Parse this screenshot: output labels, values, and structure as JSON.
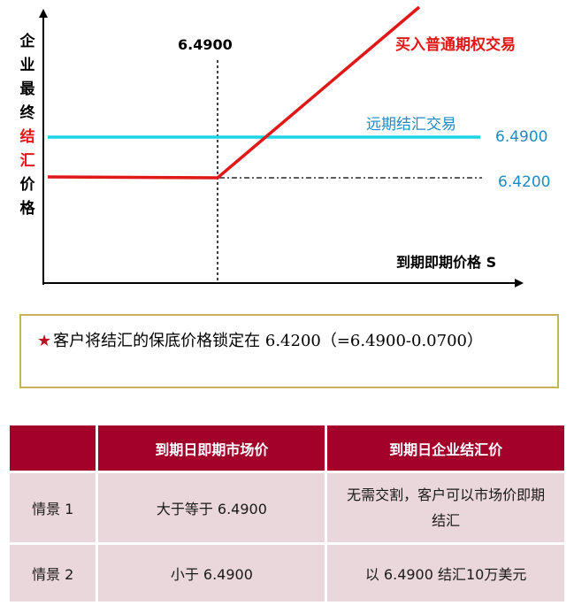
{
  "chart": {
    "y_label_chars": [
      "企",
      "业",
      "最",
      "终",
      "结",
      "汇",
      "价",
      "格"
    ],
    "y_label_red_indices": [
      4,
      5
    ],
    "x_axis_label": "到期即期价格 S",
    "strike_label": "6.4900",
    "line_call_label": "买入普通期权交易",
    "line_forward_label": "远期结汇交易",
    "forward_value_label": "6.4900",
    "floor_value_label": "6.4200",
    "colors": {
      "call": "#e01818",
      "forward": "#1ad6e6",
      "forward_text": "#1f8bc2",
      "call_text": "#e01818",
      "axis": "#000000"
    }
  },
  "note": {
    "star": "★",
    "text": "客户将结汇的保底价格锁定在 6.4200（=6.4900-0.0700）"
  },
  "table": {
    "headers": [
      "",
      "到期日即期市场价",
      "到期日企业结汇价"
    ],
    "rows": [
      {
        "scenario": "情景 1",
        "market_price": "大于等于 6.4900",
        "settle_price": "无需交割，客户可以市场价即期结汇"
      },
      {
        "scenario": "情景 2",
        "market_price": "小于 6.4900",
        "settle_price": "以 6.4900 结汇10万美元"
      }
    ],
    "colors": {
      "header_bg": "#a3002a",
      "cell_bg": "#ead7db"
    }
  }
}
